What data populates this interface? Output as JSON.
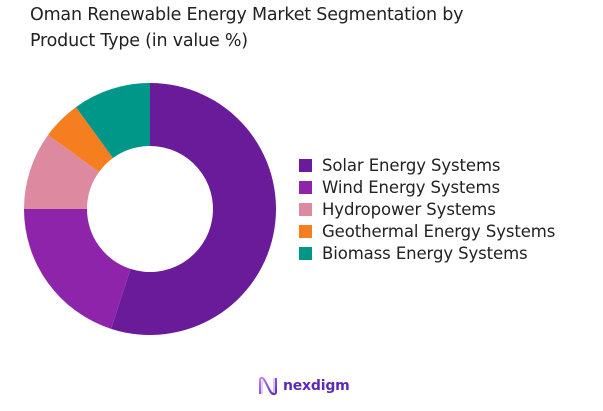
{
  "title": "Oman Renewable Energy Market Segmentation by Product Type (in value %)",
  "title_lines": [
    "Oman Renewable Energy Market Segmentation by",
    "Product Type (in value %)"
  ],
  "chart_data": {
    "type": "pie",
    "subtype": "donut",
    "title": "Oman Renewable Energy Market Segmentation by Product Type (in value %)",
    "categories": [
      "Solar Energy Systems",
      "Wind Energy Systems",
      "Hydropower Systems",
      "Geothermal Energy Systems",
      "Biomass Energy Systems"
    ],
    "values": [
      55,
      20,
      10,
      5,
      10
    ],
    "colors": [
      "#6a1b9a",
      "#8e24aa",
      "#dd8aa0",
      "#f57f20",
      "#009688"
    ],
    "legend_position": "right",
    "start_angle": "top, clockwise"
  },
  "legend": {
    "items": [
      {
        "label": "Solar Energy Systems",
        "color": "#6a1b9a"
      },
      {
        "label": "Wind Energy Systems",
        "color": "#8e24aa"
      },
      {
        "label": "Hydropower Systems",
        "color": "#dd8aa0"
      },
      {
        "label": "Geothermal Energy Systems",
        "color": "#f57f20"
      },
      {
        "label": "Biomass Energy Systems",
        "color": "#009688"
      }
    ]
  },
  "logo": {
    "text": "nexdigm",
    "icon": "nexdigm-wave-icon"
  }
}
